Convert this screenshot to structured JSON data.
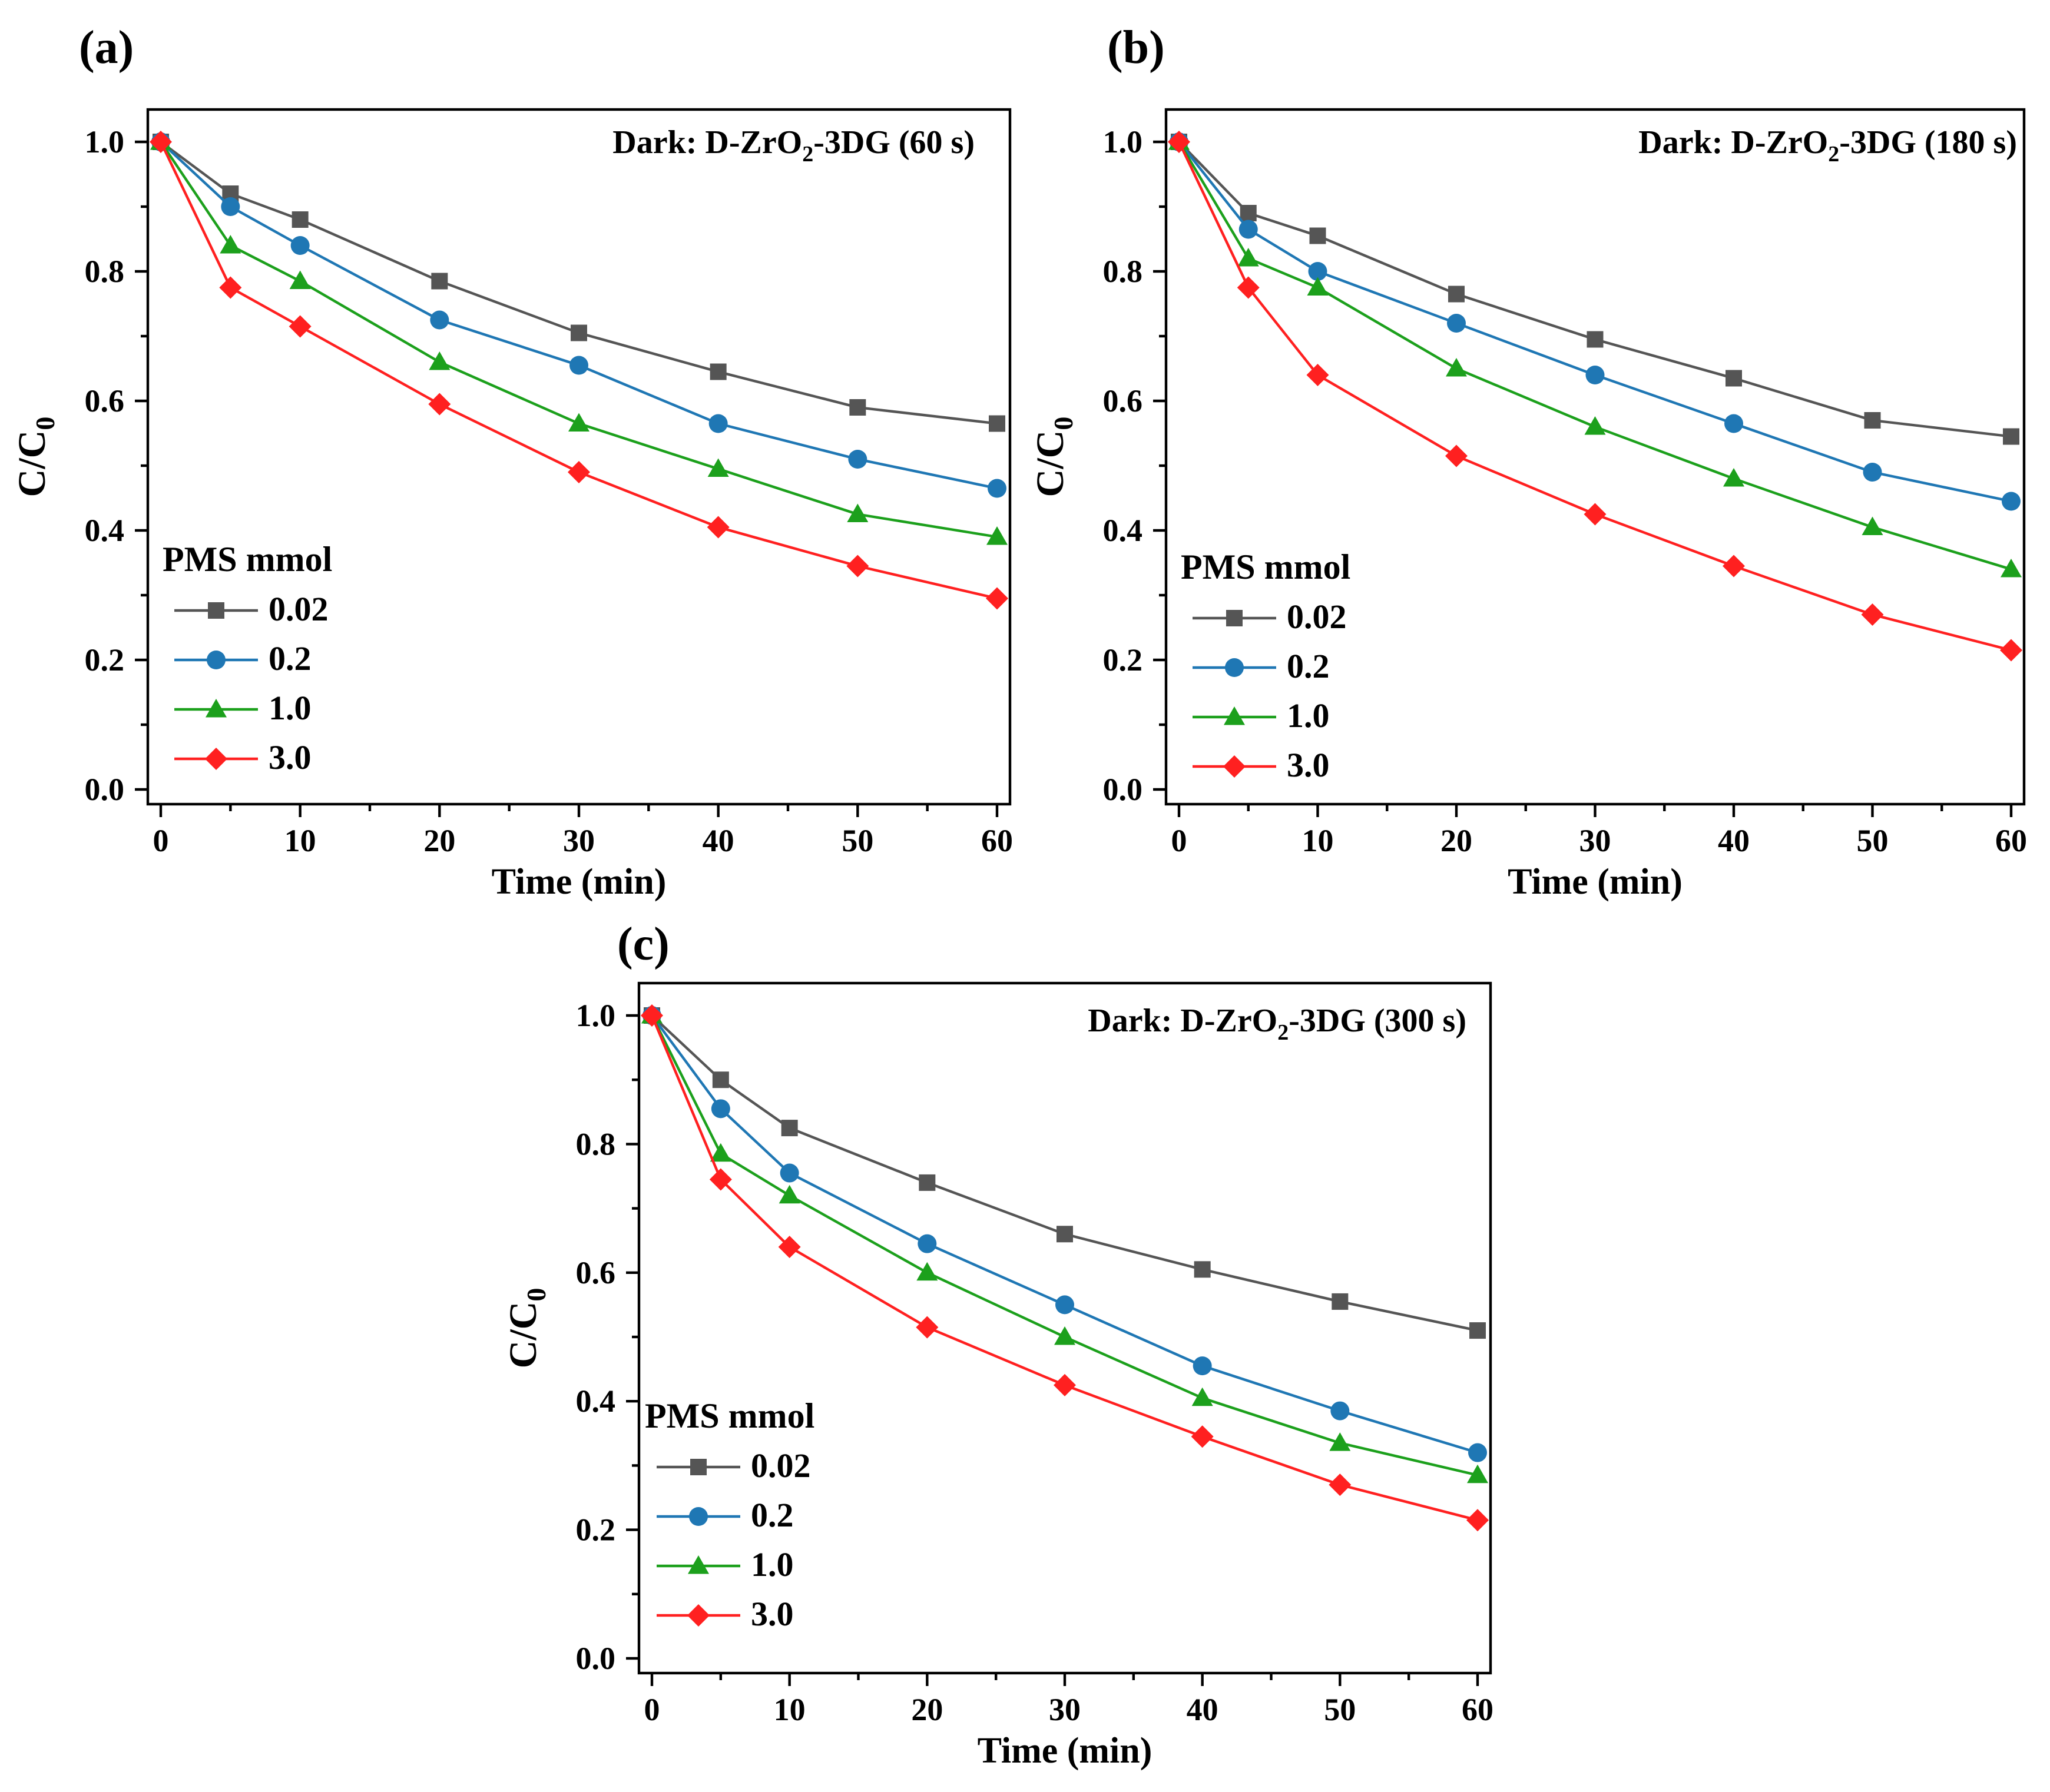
{
  "chart_data": [
    {
      "type": "line",
      "panel_label": "(a)",
      "annotation": {
        "main": "Dark: D-ZrO",
        "sub": "2",
        "rest": "-3DG (60 s)"
      },
      "xlabel": "Time (min)",
      "ylabel": {
        "main": "C/C",
        "sub": "0"
      },
      "xlim": [
        0,
        60
      ],
      "ylim": [
        0,
        1.0
      ],
      "x_ticks": [
        "0",
        "10",
        "20",
        "30",
        "40",
        "50",
        "60"
      ],
      "y_ticks": [
        "0.0",
        "0.2",
        "0.4",
        "0.6",
        "0.8",
        "1.0"
      ],
      "legend_title": "PMS mmol",
      "x": [
        0,
        5,
        10,
        20,
        30,
        40,
        50,
        60
      ],
      "series": [
        {
          "name": "0.02",
          "color": "#555555",
          "marker": "square",
          "values": [
            1.0,
            0.92,
            0.88,
            0.785,
            0.705,
            0.645,
            0.59,
            0.565
          ]
        },
        {
          "name": "0.2",
          "color": "#1f77b4",
          "marker": "circle",
          "values": [
            1.0,
            0.9,
            0.84,
            0.725,
            0.655,
            0.565,
            0.51,
            0.465
          ]
        },
        {
          "name": "1.0",
          "color": "#1ca01c",
          "marker": "triangle",
          "values": [
            1.0,
            0.84,
            0.785,
            0.66,
            0.565,
            0.495,
            0.425,
            0.39
          ]
        },
        {
          "name": "3.0",
          "color": "#ff2020",
          "marker": "diamond",
          "values": [
            1.0,
            0.775,
            0.715,
            0.595,
            0.49,
            0.405,
            0.345,
            0.295
          ]
        }
      ]
    },
    {
      "type": "line",
      "panel_label": "(b)",
      "annotation": {
        "main": "Dark: D-ZrO",
        "sub": "2",
        "rest": "-3DG (180 s)"
      },
      "xlabel": "Time (min)",
      "ylabel": {
        "main": "C/C",
        "sub": "0"
      },
      "xlim": [
        0,
        60
      ],
      "ylim": [
        0,
        1.0
      ],
      "x_ticks": [
        "0",
        "10",
        "20",
        "30",
        "40",
        "50",
        "60"
      ],
      "y_ticks": [
        "0.0",
        "0.2",
        "0.4",
        "0.6",
        "0.8",
        "1.0"
      ],
      "legend_title": "PMS mmol",
      "x": [
        0,
        5,
        10,
        20,
        30,
        40,
        50,
        60
      ],
      "series": [
        {
          "name": "0.02",
          "color": "#555555",
          "marker": "square",
          "values": [
            1.0,
            0.89,
            0.855,
            0.765,
            0.695,
            0.635,
            0.57,
            0.545
          ]
        },
        {
          "name": "0.2",
          "color": "#1f77b4",
          "marker": "circle",
          "values": [
            1.0,
            0.865,
            0.8,
            0.72,
            0.64,
            0.565,
            0.49,
            0.445
          ]
        },
        {
          "name": "1.0",
          "color": "#1ca01c",
          "marker": "triangle",
          "values": [
            1.0,
            0.82,
            0.775,
            0.65,
            0.56,
            0.48,
            0.405,
            0.34
          ]
        },
        {
          "name": "3.0",
          "color": "#ff2020",
          "marker": "diamond",
          "values": [
            1.0,
            0.775,
            0.64,
            0.515,
            0.425,
            0.345,
            0.27,
            0.215
          ]
        }
      ]
    },
    {
      "type": "line",
      "panel_label": "(c)",
      "annotation": {
        "main": "Dark: D-ZrO",
        "sub": "2",
        "rest": "-3DG  (300 s)"
      },
      "xlabel": "Time (min)",
      "ylabel": {
        "main": "C/C",
        "sub": "0"
      },
      "xlim": [
        0,
        60
      ],
      "ylim": [
        0,
        1.0
      ],
      "x_ticks": [
        "0",
        "10",
        "20",
        "30",
        "40",
        "50",
        "60"
      ],
      "y_ticks": [
        "0.0",
        "0.2",
        "0.4",
        "0.6",
        "0.8",
        "1.0"
      ],
      "legend_title": "PMS mmol",
      "x": [
        0,
        5,
        10,
        20,
        30,
        40,
        50,
        60
      ],
      "series": [
        {
          "name": "0.02",
          "color": "#555555",
          "marker": "square",
          "values": [
            1.0,
            0.9,
            0.825,
            0.74,
            0.66,
            0.605,
            0.555,
            0.51
          ]
        },
        {
          "name": "0.2",
          "color": "#1f77b4",
          "marker": "circle",
          "values": [
            1.0,
            0.855,
            0.755,
            0.645,
            0.55,
            0.455,
            0.385,
            0.32
          ]
        },
        {
          "name": "1.0",
          "color": "#1ca01c",
          "marker": "triangle",
          "values": [
            1.0,
            0.785,
            0.72,
            0.6,
            0.5,
            0.405,
            0.335,
            0.285
          ]
        },
        {
          "name": "3.0",
          "color": "#ff2020",
          "marker": "diamond",
          "values": [
            1.0,
            0.745,
            0.64,
            0.515,
            0.425,
            0.345,
            0.27,
            0.215
          ]
        }
      ]
    }
  ]
}
